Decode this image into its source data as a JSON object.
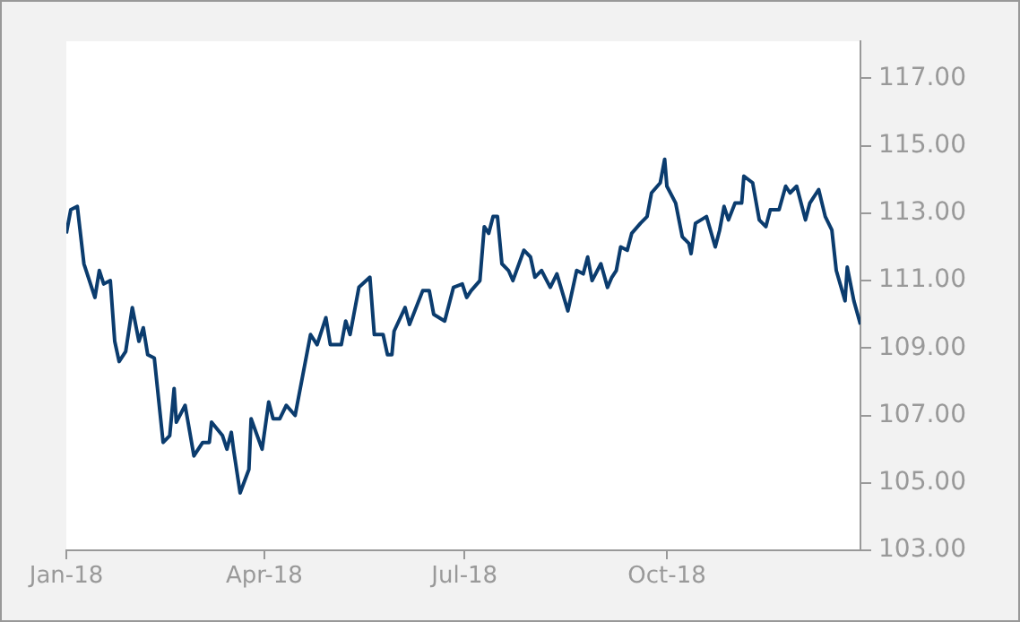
{
  "chart_data": {
    "type": "line",
    "x": [
      "2018-01-01",
      "2018-01-03",
      "2018-01-06",
      "2018-01-09",
      "2018-01-14",
      "2018-01-16",
      "2018-01-18",
      "2018-01-21",
      "2018-01-23",
      "2018-01-25",
      "2018-01-28",
      "2018-01-31",
      "2018-02-03",
      "2018-02-05",
      "2018-02-07",
      "2018-02-10",
      "2018-02-14",
      "2018-02-17",
      "2018-02-19",
      "2018-02-20",
      "2018-02-24",
      "2018-02-28",
      "2018-03-04",
      "2018-03-07",
      "2018-03-08",
      "2018-03-13",
      "2018-03-15",
      "2018-03-17",
      "2018-03-18",
      "2018-03-21",
      "2018-03-25",
      "2018-03-26",
      "2018-03-31",
      "2018-04-03",
      "2018-04-05",
      "2018-04-08",
      "2018-04-11",
      "2018-04-15",
      "2018-04-22",
      "2018-04-25",
      "2018-04-29",
      "2018-05-01",
      "2018-05-06",
      "2018-05-08",
      "2018-05-10",
      "2018-05-14",
      "2018-05-19",
      "2018-05-21",
      "2018-05-25",
      "2018-05-27",
      "2018-05-29",
      "2018-05-30",
      "2018-06-04",
      "2018-06-06",
      "2018-06-12",
      "2018-06-15",
      "2018-06-17",
      "2018-06-22",
      "2018-06-26",
      "2018-06-30",
      "2018-07-02",
      "2018-07-04",
      "2018-07-08",
      "2018-07-10",
      "2018-07-12",
      "2018-07-14",
      "2018-07-16",
      "2018-07-18",
      "2018-07-21",
      "2018-07-23",
      "2018-07-28",
      "2018-07-31",
      "2018-08-02",
      "2018-08-05",
      "2018-08-09",
      "2018-08-12",
      "2018-08-17",
      "2018-08-21",
      "2018-08-24",
      "2018-08-26",
      "2018-08-28",
      "2018-09-01",
      "2018-09-04",
      "2018-09-06",
      "2018-09-08",
      "2018-09-10",
      "2018-09-13",
      "2018-09-15",
      "2018-09-19",
      "2018-09-22",
      "2018-09-24",
      "2018-09-28",
      "2018-09-30",
      "2018-10-01",
      "2018-10-05",
      "2018-10-08",
      "2018-10-11",
      "2018-10-12",
      "2018-10-14",
      "2018-10-19",
      "2018-10-23",
      "2018-10-25",
      "2018-10-27",
      "2018-10-29",
      "2018-11-01",
      "2018-11-04",
      "2018-11-05",
      "2018-11-09",
      "2018-11-12",
      "2018-11-15",
      "2018-11-17",
      "2018-11-21",
      "2018-11-24",
      "2018-11-26",
      "2018-11-29",
      "2018-12-01",
      "2018-12-03",
      "2018-12-05",
      "2018-12-09",
      "2018-12-12",
      "2018-12-15",
      "2018-12-17",
      "2018-12-21",
      "2018-12-22",
      "2018-12-25",
      "2018-12-28"
    ],
    "series": [
      {
        "color": "#0b3c6e",
        "values": [
          112.4,
          113.1,
          113.2,
          111.5,
          110.5,
          111.3,
          110.9,
          111.0,
          109.2,
          108.6,
          108.9,
          110.2,
          109.2,
          109.6,
          108.8,
          108.7,
          106.2,
          106.4,
          107.8,
          106.8,
          107.3,
          105.8,
          106.2,
          106.2,
          106.8,
          106.4,
          106.0,
          106.5,
          106.0,
          104.7,
          105.4,
          106.9,
          106.0,
          107.4,
          106.9,
          106.9,
          107.3,
          107.0,
          109.4,
          109.1,
          109.9,
          109.1,
          109.1,
          109.8,
          109.4,
          110.8,
          111.1,
          109.4,
          109.4,
          108.8,
          108.8,
          109.5,
          110.2,
          109.7,
          110.7,
          110.7,
          110.0,
          109.8,
          110.8,
          110.9,
          110.5,
          110.7,
          111.0,
          112.6,
          112.4,
          112.9,
          112.9,
          111.5,
          111.3,
          111.0,
          111.9,
          111.7,
          111.1,
          111.3,
          110.8,
          111.2,
          110.1,
          111.3,
          111.2,
          111.7,
          111.0,
          111.5,
          110.8,
          111.1,
          111.3,
          112.0,
          111.9,
          112.4,
          112.7,
          112.9,
          113.6,
          113.9,
          114.6,
          113.8,
          113.3,
          112.3,
          112.1,
          111.8,
          112.7,
          112.9,
          112.0,
          112.5,
          113.2,
          112.8,
          113.3,
          113.3,
          114.1,
          113.9,
          112.8,
          112.6,
          113.1,
          113.1,
          113.8,
          113.6,
          113.8,
          113.3,
          112.8,
          113.3,
          113.7,
          112.9,
          112.5,
          111.3,
          110.4,
          111.4,
          110.4,
          109.7
        ]
      }
    ],
    "xlim": [
      "2018-01-01",
      "2018-12-28"
    ],
    "xticks": [
      {
        "value": "2018-01-01",
        "label": "Jan-18"
      },
      {
        "value": "2018-04-01",
        "label": "Apr-18"
      },
      {
        "value": "2018-07-01",
        "label": "Jul-18"
      },
      {
        "value": "2018-10-01",
        "label": "Oct-18"
      }
    ],
    "ylim": [
      103,
      118.1
    ],
    "yticks": [
      {
        "value": 103,
        "label": "103.00"
      },
      {
        "value": 105,
        "label": "105.00"
      },
      {
        "value": 107,
        "label": "107.00"
      },
      {
        "value": 109,
        "label": "109.00"
      },
      {
        "value": 111,
        "label": "111.00"
      },
      {
        "value": 113,
        "label": "113.00"
      },
      {
        "value": 115,
        "label": "115.00"
      },
      {
        "value": 117,
        "label": "117.00"
      }
    ],
    "grid": false,
    "legend": false,
    "marker": "none",
    "line_style": "solid"
  }
}
